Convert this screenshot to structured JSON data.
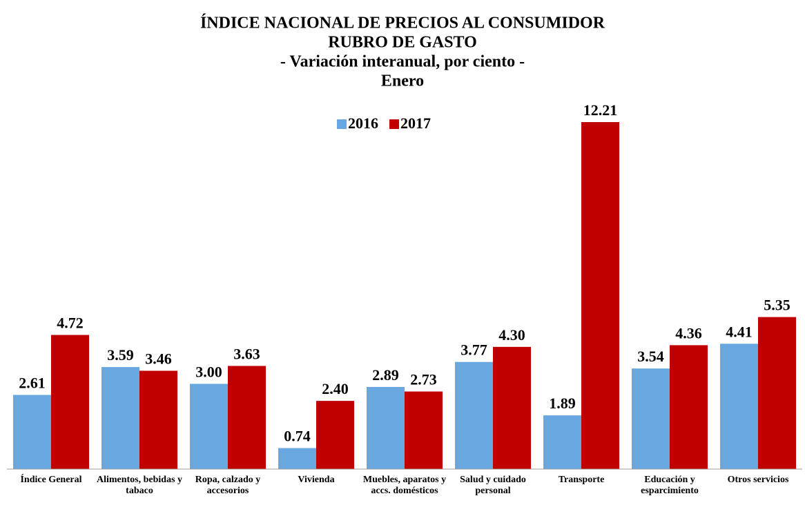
{
  "chart_data": {
    "type": "bar",
    "title": [
      "ÍNDICE NACIONAL DE PRECIOS AL CONSUMIDOR",
      "RUBRO DE GASTO"
    ],
    "subtitle": "- Variación interanual, por ciento -",
    "period": "Enero",
    "categories": [
      "Índice General",
      "Alimentos, bebidas y tabaco",
      "Ropa, calzado y accesorios",
      "Vivienda",
      "Muebles, aparatos y accs. domésticos",
      "Salud y cuidado personal",
      "Transporte",
      "Educación y esparcimiento",
      "Otros servicios"
    ],
    "series": [
      {
        "name": "2016",
        "color": "#68a7e0",
        "values": [
          2.61,
          3.59,
          3.0,
          0.74,
          2.89,
          3.77,
          1.89,
          3.54,
          4.41
        ],
        "value_labels": [
          "2.61",
          "3.59",
          "3.00",
          "0.74",
          "2.89",
          "3.77",
          "1.89",
          "3.54",
          "4.41"
        ]
      },
      {
        "name": "2017",
        "color": "#c00000",
        "values": [
          4.72,
          3.46,
          3.63,
          2.4,
          2.73,
          4.3,
          12.21,
          4.36,
          5.35
        ],
        "value_labels": [
          "4.72",
          "3.46",
          "3.63",
          "2.40",
          "2.73",
          "4.30",
          "12.21",
          "4.36",
          "5.35"
        ]
      }
    ],
    "legend": "top"
  }
}
